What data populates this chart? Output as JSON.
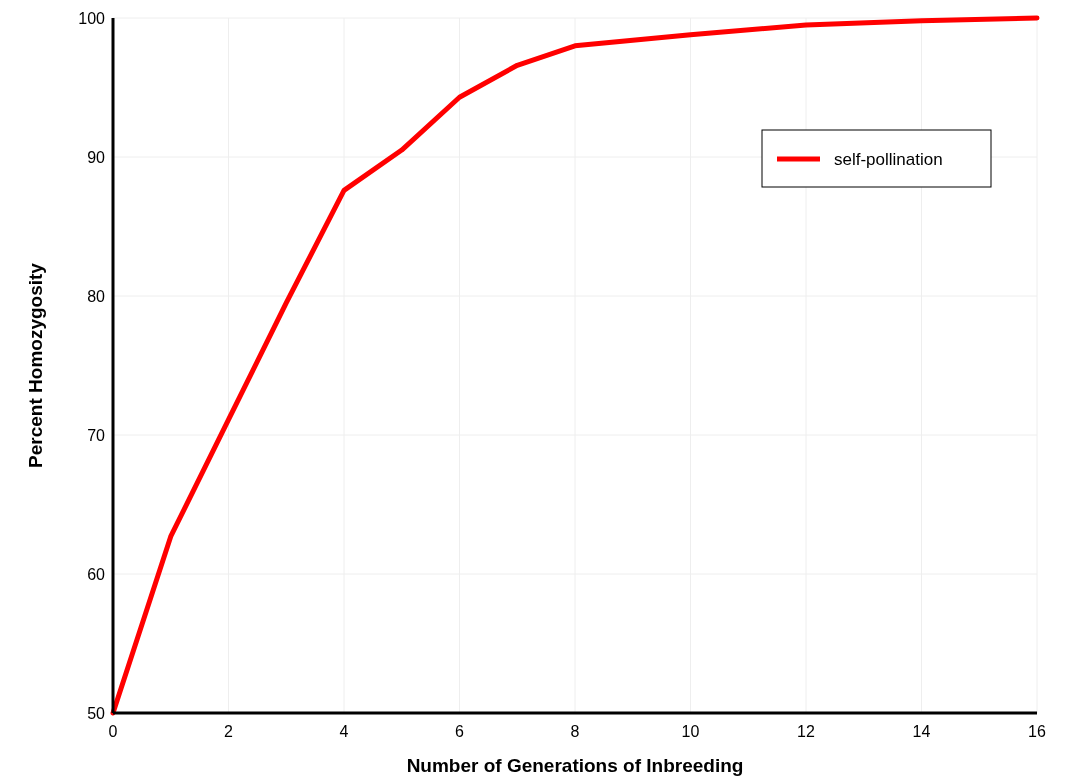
{
  "chart_data": {
    "type": "line",
    "xlabel": "Number of Generations of Inbreeding",
    "ylabel": "Percent Homozygosity",
    "xlim": [
      0,
      16
    ],
    "xticks": [
      0,
      2,
      4,
      6,
      8,
      10,
      12,
      14,
      16
    ],
    "ylim": [
      50,
      100
    ],
    "yticks": [
      50,
      60,
      70,
      80,
      90,
      100
    ],
    "grid": true,
    "legend": "top right",
    "marker": "none",
    "line_style": "solid",
    "series": [
      {
        "name": "self-pollination",
        "color": "#ff0000",
        "x": [
          0,
          1,
          2,
          3,
          4,
          5,
          6,
          7,
          8,
          10,
          12,
          14,
          16
        ],
        "values": [
          50,
          62.7,
          71.1,
          79.5,
          87.6,
          90.5,
          94.3,
          96.6,
          98,
          98.8,
          99.5,
          99.8,
          100
        ]
      }
    ]
  }
}
